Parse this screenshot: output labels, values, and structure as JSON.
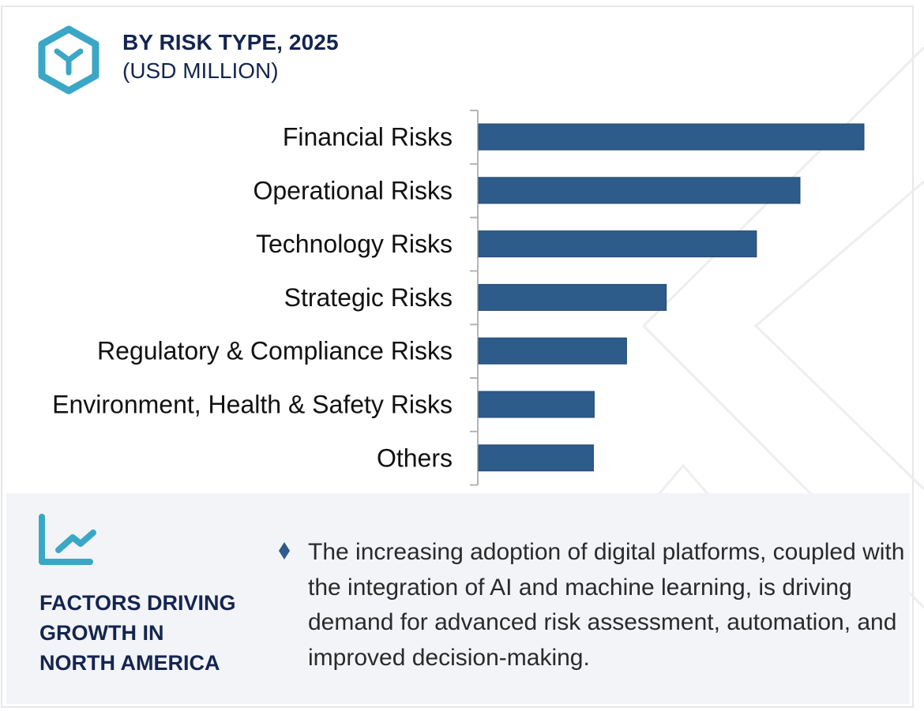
{
  "header": {
    "title": "BY RISK TYPE, 2025",
    "subtitle": "(USD MILLION)",
    "icon": "hexagon-y-icon"
  },
  "colors": {
    "bar": "#2d5b8a",
    "accent_icon": "#3ba7c6",
    "title_text": "#14254f",
    "panel_bg": "#f3f4f8",
    "axis": "#b5b5b5"
  },
  "chart_data": {
    "type": "bar",
    "orientation": "horizontal",
    "title": "BY RISK TYPE, 2025",
    "subtitle": "(USD MILLION)",
    "xlabel": "",
    "ylabel": "",
    "units": "relative (largest = 100; no value axis shown)",
    "categories": [
      "Financial Risks",
      "Operational Risks",
      "Technology Risks",
      "Strategic Risks",
      "Regulatory & Compliance Risks",
      "Environment, Health & Safety Risks",
      "Others"
    ],
    "values": [
      100,
      83.4,
      72.1,
      48.7,
      38.4,
      30.0,
      29.8
    ],
    "xlim": [
      0,
      100
    ],
    "grid": false,
    "legend": "none"
  },
  "factors": {
    "icon": "line-chart-icon",
    "title_lines": [
      "FACTORS DRIVING",
      "GROWTH IN",
      "NORTH AMERICA"
    ],
    "bullet_icon": "diamond-bullet-icon",
    "bullets": [
      "The increasing adoption of digital platforms, coupled with the integration of AI and machine learning, is driving demand for advanced risk assessment, automation, and improved decision-making."
    ]
  }
}
